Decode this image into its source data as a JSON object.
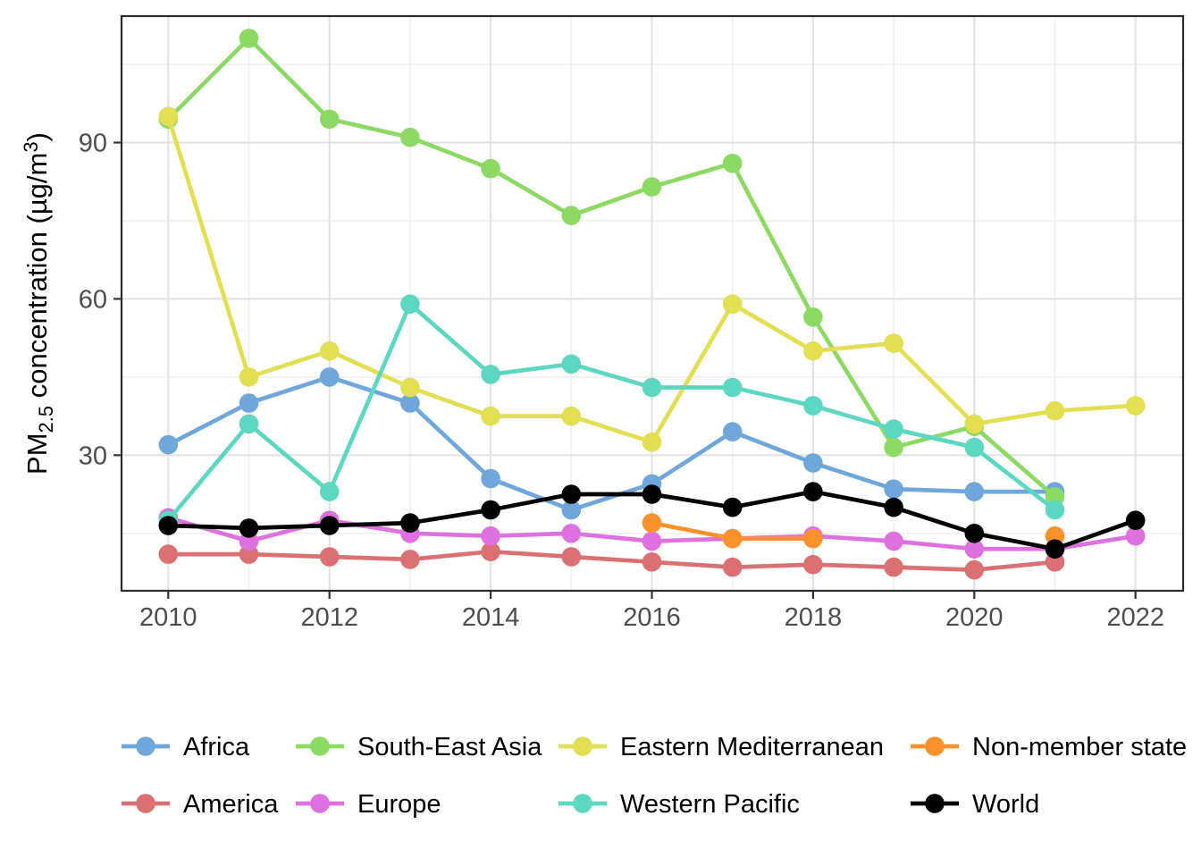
{
  "chart_data": {
    "type": "line",
    "title": "",
    "xlabel": "",
    "ylabel_parts": {
      "pre": "PM",
      "sub": "2.5",
      "mid": " concentration (µg/m",
      "sup": "3",
      "post": ")"
    },
    "x": [
      2010,
      2011,
      2012,
      2013,
      2014,
      2015,
      2016,
      2017,
      2018,
      2019,
      2020,
      2021,
      2022
    ],
    "x_major_ticks": [
      2010,
      2012,
      2014,
      2016,
      2018,
      2020,
      2022
    ],
    "x_minor_ticks": [
      2011,
      2013,
      2015,
      2017,
      2019,
      2021
    ],
    "y_major_ticks": [
      30,
      60,
      90
    ],
    "y_minor_ticks": [
      15,
      45,
      75,
      105
    ],
    "ylim": [
      4,
      114
    ],
    "grid": true,
    "legend_position": "bottom",
    "series": [
      {
        "name": "Africa",
        "color": "#6FA7DB",
        "values": [
          32,
          40,
          45,
          40,
          25.5,
          19.5,
          24.5,
          34.5,
          28.5,
          23.5,
          23,
          23,
          null
        ]
      },
      {
        "name": "America",
        "color": "#DB7072",
        "values": [
          11,
          11,
          10.5,
          10,
          11.5,
          10.5,
          9.5,
          8.5,
          9,
          8.5,
          8,
          9.5,
          null
        ]
      },
      {
        "name": "South-East Asia",
        "color": "#8CD964",
        "values": [
          94.5,
          110,
          94.5,
          91,
          85,
          76,
          81.5,
          86,
          56.5,
          31.5,
          35.5,
          22,
          null
        ]
      },
      {
        "name": "Europe",
        "color": "#DF70DF",
        "values": [
          18,
          13.5,
          17.5,
          15,
          14.5,
          15,
          13.5,
          14,
          14.5,
          13.5,
          12,
          12,
          14.5
        ]
      },
      {
        "name": "Eastern Mediterranean",
        "color": "#E2DF52",
        "values": [
          95,
          45,
          50,
          43,
          37.5,
          37.5,
          32.5,
          59,
          50,
          51.5,
          36,
          38.5,
          39.5
        ]
      },
      {
        "name": "Western Pacific",
        "color": "#5CD7C1",
        "values": [
          17.5,
          36,
          23,
          59,
          45.5,
          47.5,
          43,
          43,
          39.5,
          35,
          31.5,
          19.5,
          null
        ]
      },
      {
        "name": "Non-member state",
        "color": "#F9922B",
        "values": [
          null,
          null,
          null,
          null,
          null,
          null,
          17,
          14,
          14,
          null,
          null,
          14.5,
          null
        ]
      },
      {
        "name": "World",
        "color": "#000000",
        "values": [
          16.5,
          16,
          16.5,
          17,
          19.5,
          22.5,
          22.5,
          20,
          23,
          20,
          15,
          12,
          17.5
        ]
      }
    ],
    "legend_rows": [
      [
        "Africa",
        "South-East Asia",
        "Eastern Mediterranean",
        "Non-member state"
      ],
      [
        "America",
        "Europe",
        "Western Pacific",
        "World"
      ]
    ]
  }
}
